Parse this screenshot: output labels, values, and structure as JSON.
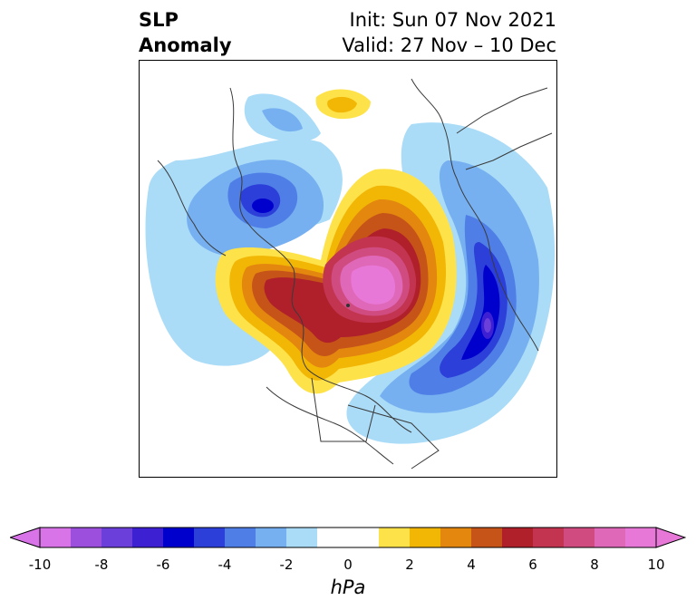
{
  "title": {
    "left_line1": "SLP",
    "left_line2": "Anomaly",
    "right_line1": "Init: Sun 07 Nov 2021",
    "right_line2": "Valid: 27 Nov – 10 Dec"
  },
  "colorbar": {
    "unit_label": "hPa",
    "tick_labels": [
      "-10",
      "-8",
      "-6",
      "-4",
      "-2",
      "0",
      "2",
      "4",
      "6",
      "8",
      "10"
    ],
    "colors": [
      "#d873e8",
      "#9b4fdc",
      "#6a3fda",
      "#3c20d2",
      "#0000cd",
      "#2c3fd9",
      "#4f7fe6",
      "#76b0f0",
      "#aadcf8",
      "#ffffff",
      "#ffffff",
      "#fee24a",
      "#f2b705",
      "#e3870f",
      "#c65418",
      "#b0202a",
      "#c23450",
      "#d04c80",
      "#df68b8",
      "#e878d8"
    ]
  },
  "map": {
    "field": "sea level pressure anomaly",
    "projection": "north polar stereographic",
    "features": [
      {
        "name": "negative anomaly over North Atlantic",
        "peak_hpa": -10
      },
      {
        "name": "negative anomaly over Alaska/NE Pacific",
        "peak_hpa": -6
      },
      {
        "name": "positive anomaly over Arctic Ocean / Siberia",
        "peak_hpa": 10
      },
      {
        "name": "positive anomaly over Greenland",
        "peak_hpa": 3
      }
    ]
  }
}
